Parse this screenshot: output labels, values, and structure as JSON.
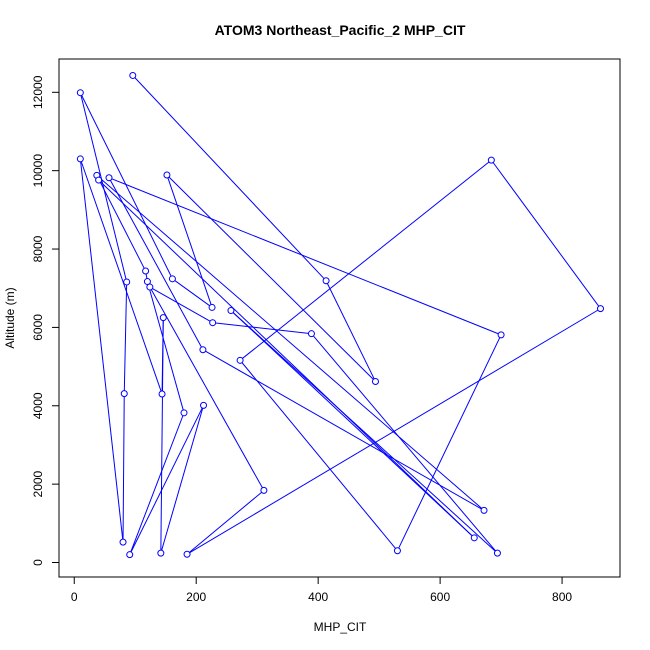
{
  "chart_data": {
    "type": "line",
    "title": "ATOM3 Northeast_Pacific_2 MHP_CIT",
    "xlabel": "MHP_CIT",
    "ylabel": "Altitude (m)",
    "xlim": [
      -25,
      895
    ],
    "ylim": [
      -370,
      12850
    ],
    "x_ticks": [
      0,
      200,
      400,
      600,
      800
    ],
    "x_tick_labels": [
      "0",
      "200",
      "400",
      "600",
      "800"
    ],
    "y_ticks": [
      0,
      2000,
      4000,
      6000,
      8000,
      10000,
      12000
    ],
    "y_tick_labels": [
      "0",
      "2000",
      "4000",
      "6000",
      "8000",
      "10000",
      "12000"
    ],
    "grid": false,
    "markers": "open circles",
    "series_color": "#0000ff",
    "series": [
      {
        "points": [
          {
            "x": 96,
            "y": 12430
          },
          {
            "x": 413,
            "y": 7190
          },
          {
            "x": 494,
            "y": 4620
          },
          {
            "x": 152,
            "y": 9890
          },
          {
            "x": 226,
            "y": 6510
          },
          {
            "x": 161,
            "y": 7240
          },
          {
            "x": 10,
            "y": 11990
          },
          {
            "x": 86,
            "y": 7160
          },
          {
            "x": 82,
            "y": 4310
          },
          {
            "x": 80,
            "y": 520
          },
          {
            "x": 10,
            "y": 10300
          },
          {
            "x": 144,
            "y": 4300
          },
          {
            "x": 146,
            "y": 6250
          },
          {
            "x": 142,
            "y": 240
          },
          {
            "x": 212,
            "y": 4010
          },
          {
            "x": 91,
            "y": 200
          },
          {
            "x": 180,
            "y": 3820
          },
          {
            "x": 120,
            "y": 7170
          },
          {
            "x": 117,
            "y": 7440
          },
          {
            "x": 37,
            "y": 9880
          },
          {
            "x": 672,
            "y": 1330
          },
          {
            "x": 211,
            "y": 5430
          },
          {
            "x": 57,
            "y": 9820
          },
          {
            "x": 700,
            "y": 5810
          },
          {
            "x": 530,
            "y": 300
          },
          {
            "x": 272,
            "y": 5160
          },
          {
            "x": 684,
            "y": 10270
          },
          {
            "x": 863,
            "y": 6480
          },
          {
            "x": 185,
            "y": 210
          },
          {
            "x": 311,
            "y": 1840
          },
          {
            "x": 124,
            "y": 7030
          },
          {
            "x": 227,
            "y": 6120
          },
          {
            "x": 389,
            "y": 5840
          },
          {
            "x": 694,
            "y": 240
          },
          {
            "x": 257,
            "y": 6430
          },
          {
            "x": 656,
            "y": 630
          },
          {
            "x": 40,
            "y": 9760
          }
        ]
      }
    ]
  }
}
